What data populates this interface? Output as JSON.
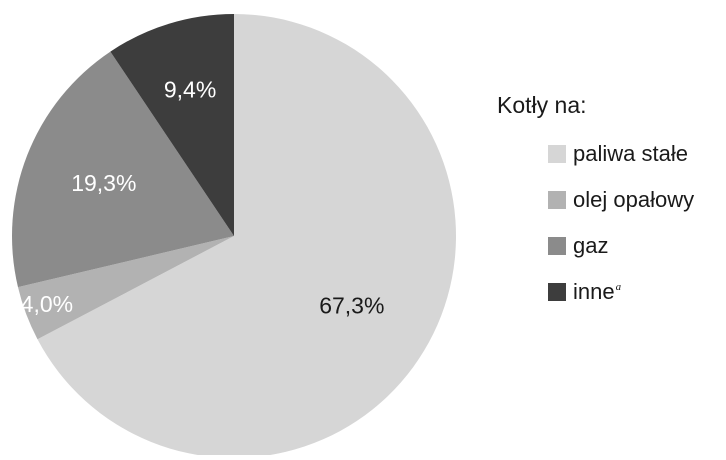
{
  "chart_data": {
    "type": "pie",
    "title": "",
    "categories": [
      "paliwa stałe",
      "olej opałowy",
      "gaz",
      "inne"
    ],
    "values": [
      67.3,
      4.0,
      19.3,
      9.4
    ],
    "value_labels": [
      "67,3%",
      "4,0%",
      "19,3%",
      "9,4%"
    ],
    "colors": [
      "#d6d6d6",
      "#b2b2b2",
      "#8b8b8b",
      "#3d3d3d"
    ],
    "label_colors": [
      "#1a1a1a",
      "#ffffff",
      "#ffffff",
      "#ffffff"
    ],
    "start_angle_deg": 0,
    "direction": "clockwise",
    "legend": {
      "title": "Kotły na:",
      "placement": "right",
      "items": [
        {
          "label": "paliwa stałe",
          "superscript": ""
        },
        {
          "label": "olej opałowy",
          "superscript": ""
        },
        {
          "label": "gaz",
          "superscript": ""
        },
        {
          "label": "inne",
          "superscript": "a"
        }
      ]
    }
  }
}
